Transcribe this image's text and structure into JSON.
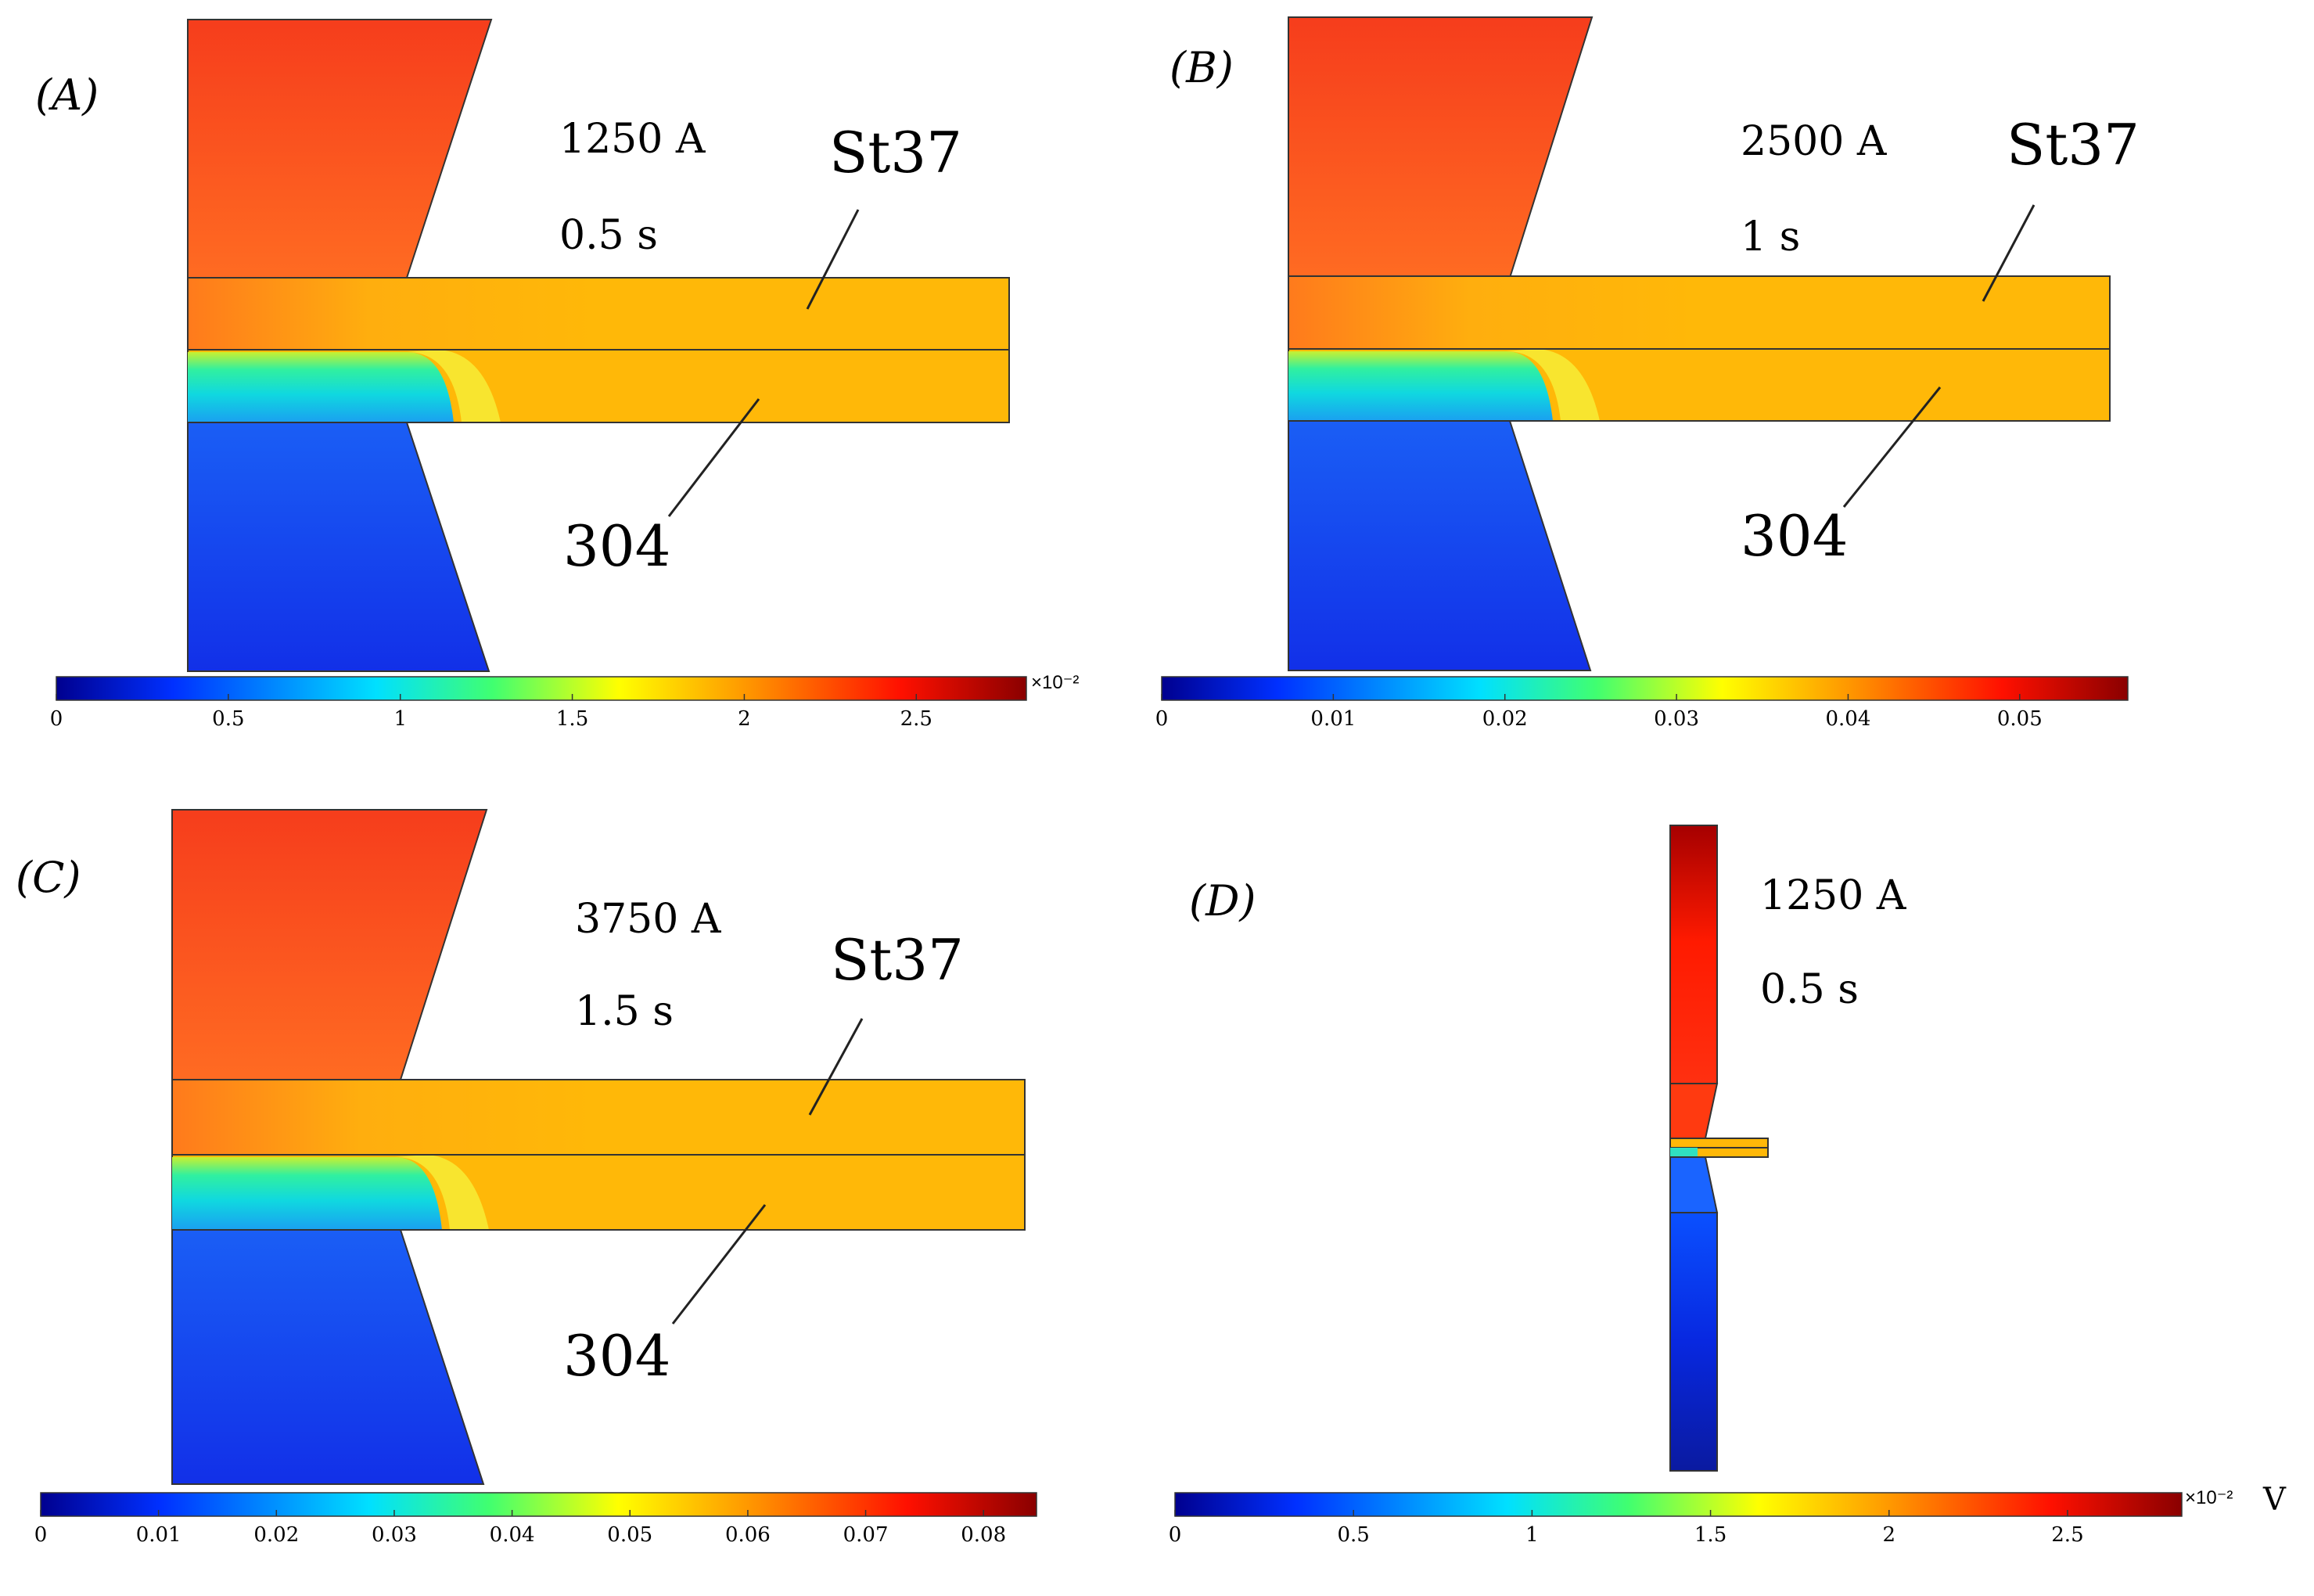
{
  "figure": {
    "panels": [
      {
        "id": "A",
        "label": "(A)",
        "current": "1250 A",
        "time": "0.5 s",
        "upper_material": "St37",
        "lower_material": "304",
        "colorbar": {
          "min": 0,
          "max": 0.028,
          "ticks": [
            "0",
            "0.5",
            "1",
            "1.5",
            "2",
            "2.5"
          ],
          "tick_values": [
            0,
            0.5,
            1,
            1.5,
            2,
            2.5
          ],
          "display_max": 2.82,
          "multiplier": "×10⁻²",
          "unit": ""
        }
      },
      {
        "id": "B",
        "label": "(B)",
        "current": "2500 A",
        "time": "1 s",
        "upper_material": "St37",
        "lower_material": "304",
        "colorbar": {
          "min": 0,
          "max": 0.056,
          "ticks": [
            "0",
            "0.01",
            "0.02",
            "0.03",
            "0.04",
            "0.05"
          ],
          "tick_values": [
            0,
            0.01,
            0.02,
            0.03,
            0.04,
            0.05
          ],
          "display_max": 0.0563,
          "multiplier": "",
          "unit": ""
        }
      },
      {
        "id": "C",
        "label": "(C)",
        "current": "3750 A",
        "time": "1.5 s",
        "upper_material": "St37",
        "lower_material": "304",
        "colorbar": {
          "min": 0,
          "max": 0.084,
          "ticks": [
            "0",
            "0.01",
            "0.02",
            "0.03",
            "0.04",
            "0.05",
            "0.06",
            "0.07",
            "0.08"
          ],
          "tick_values": [
            0,
            0.01,
            0.02,
            0.03,
            0.04,
            0.05,
            0.06,
            0.07,
            0.08
          ],
          "display_max": 0.0845,
          "multiplier": "",
          "unit": ""
        }
      },
      {
        "id": "D",
        "label": "(D)",
        "current": "1250 A",
        "time": "0.5 s",
        "colorbar": {
          "min": 0,
          "max": 0.028,
          "ticks": [
            "0",
            "0.5",
            "1",
            "1.5",
            "2",
            "2.5"
          ],
          "tick_values": [
            0,
            0.5,
            1,
            1.5,
            2,
            2.5
          ],
          "display_max": 2.82,
          "multiplier": "×10⁻²",
          "unit": "V"
        }
      }
    ],
    "colormap": [
      "#00008f",
      "#0040ff",
      "#00c0ff",
      "#40ff80",
      "#ffff00",
      "#ff8000",
      "#ff0000",
      "#800000"
    ]
  }
}
